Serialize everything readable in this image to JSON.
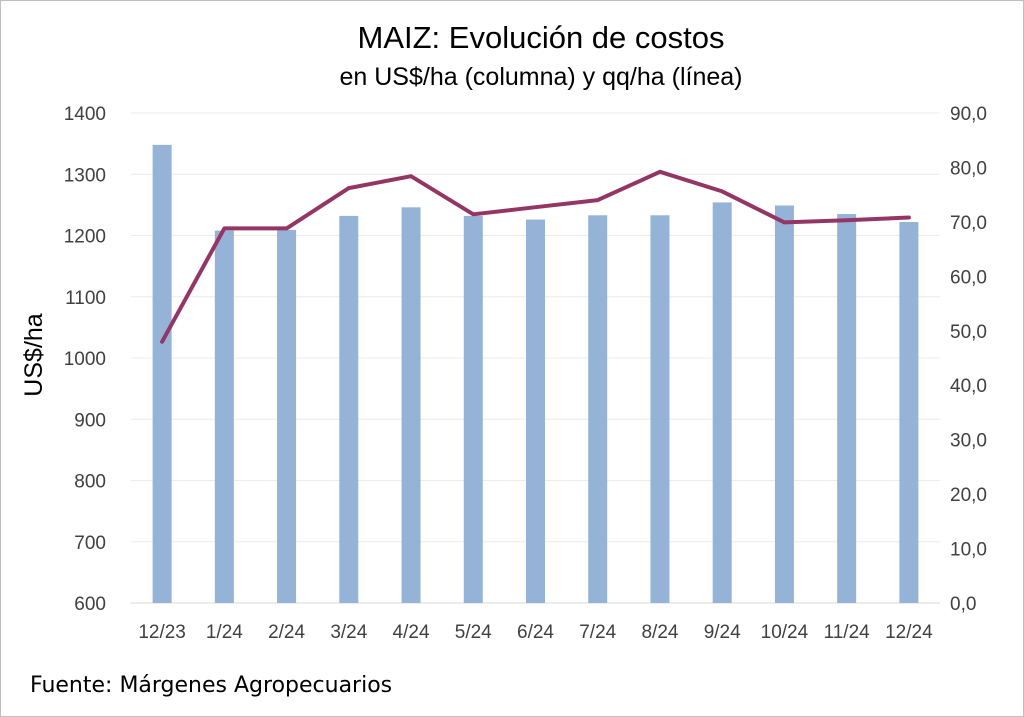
{
  "chart_data": {
    "type": "bar",
    "title": "MAIZ: Evolución de costos",
    "subtitle": "en US$/ha (columna) y qq/ha (línea)",
    "ylabel": "US$/ha",
    "categories": [
      "12/23",
      "1/24",
      "2/24",
      "3/24",
      "4/24",
      "5/24",
      "6/24",
      "7/24",
      "8/24",
      "9/24",
      "10/24",
      "11/24",
      "12/24"
    ],
    "series": [
      {
        "type": "bar",
        "axis": "left",
        "color": "#95b3d7",
        "values": [
          1348,
          1208,
          1209,
          1232,
          1246,
          1232,
          1226,
          1233,
          1233,
          1254,
          1249,
          1235,
          1222
        ]
      },
      {
        "type": "line",
        "axis": "right",
        "color": "#943665",
        "values": [
          48.0,
          68.8,
          68.8,
          76.2,
          78.4,
          71.4,
          72.7,
          74.0,
          79.2,
          75.6,
          69.9,
          70.3,
          70.8
        ]
      }
    ],
    "ylim": [
      600,
      1400
    ],
    "y_ticks": [
      "600",
      "700",
      "800",
      "900",
      "1000",
      "1100",
      "1200",
      "1300",
      "1400"
    ],
    "y2lim": [
      0,
      90
    ],
    "y2_ticks": [
      "0,0",
      "10,0",
      "20,0",
      "30,0",
      "40,0",
      "50,0",
      "60,0",
      "70,0",
      "80,0",
      "90,0"
    ],
    "grid": true
  },
  "source": "Fuente: Márgenes Agropecuarios"
}
